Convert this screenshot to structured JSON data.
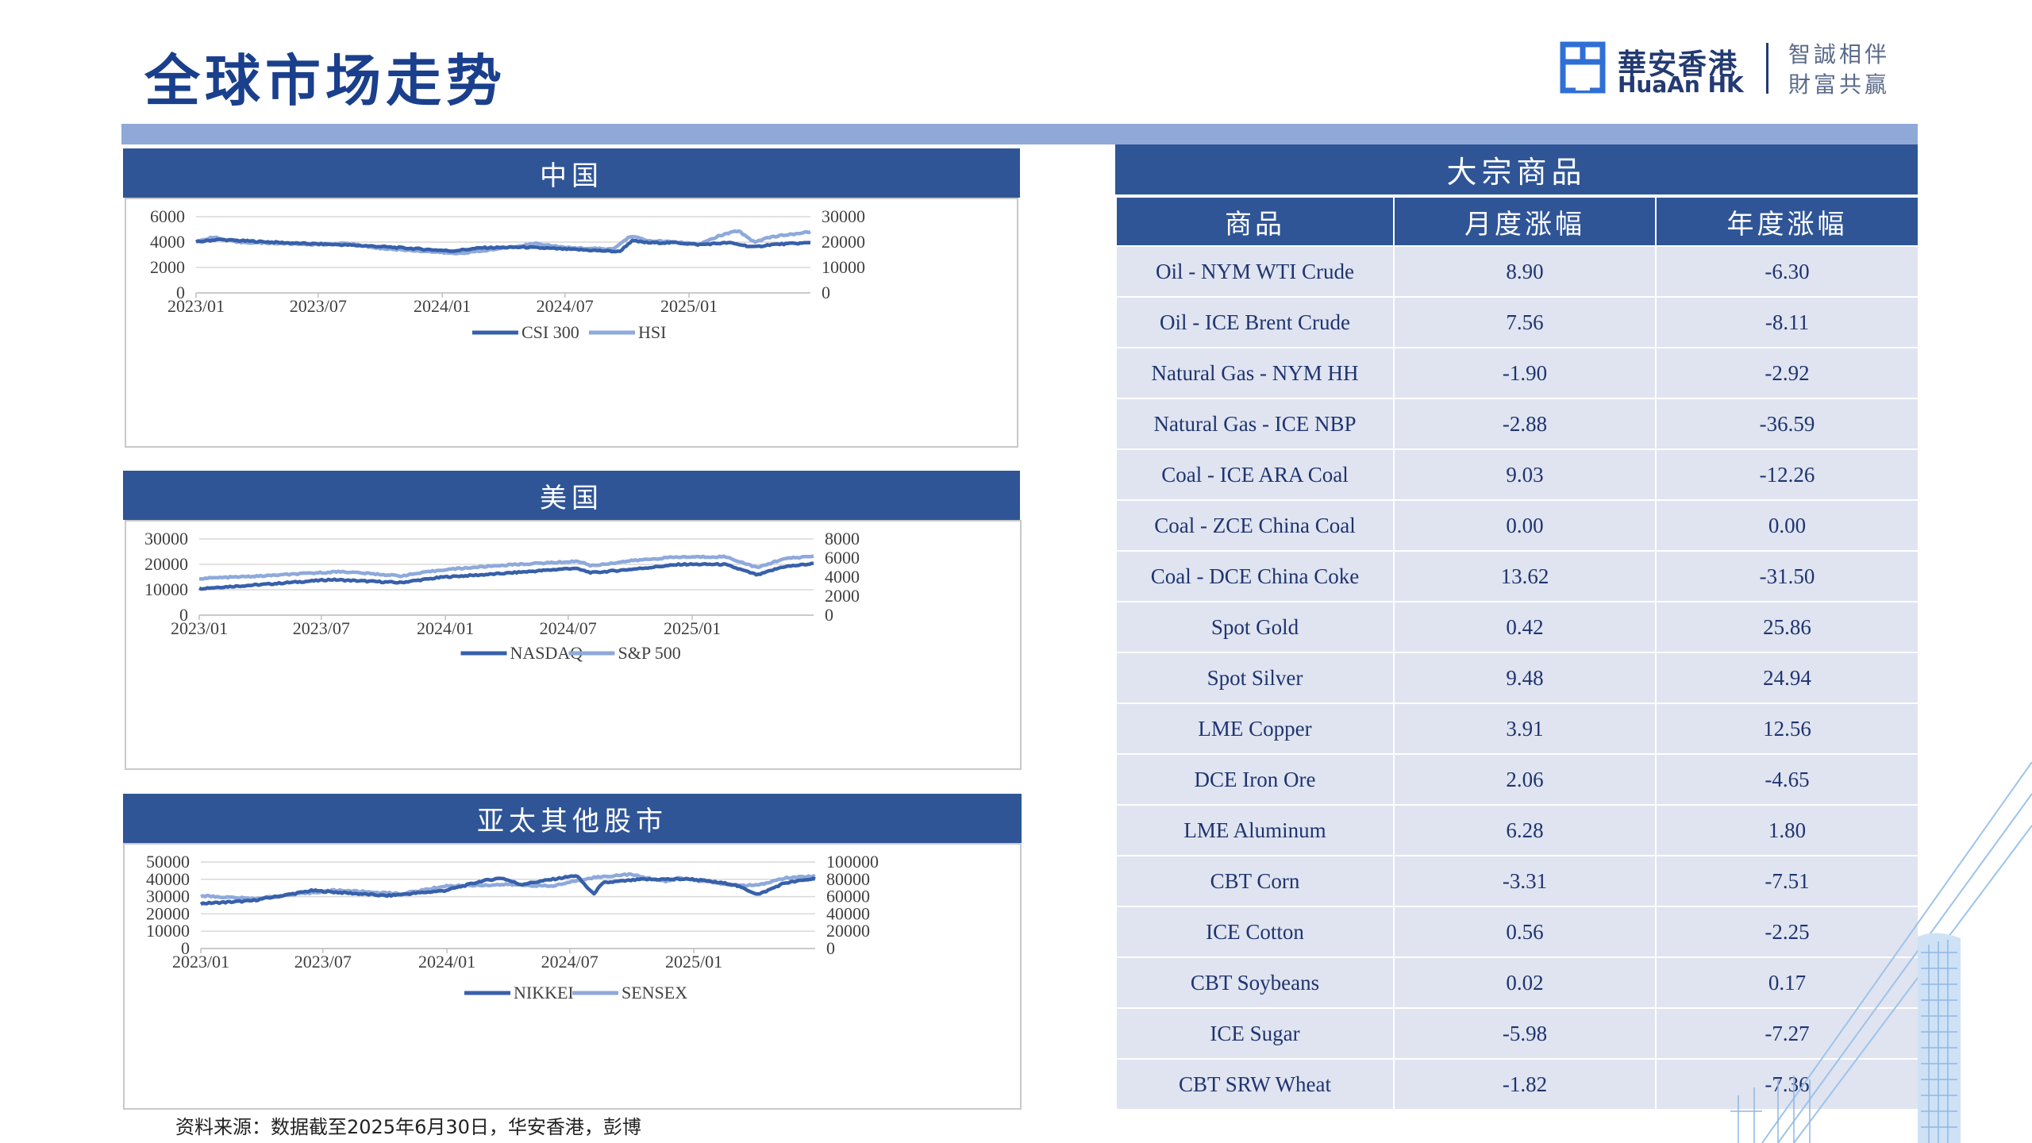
{
  "page": {
    "title": "全球市场走势",
    "source_note": "资料来源：数据截至2025年6月30日，华安香港，彭博"
  },
  "logo": {
    "cn": "華安香港",
    "en": "HuaAn HK",
    "slogan_line1": "智誠相伴",
    "slogan_line2": "財富共贏"
  },
  "colors": {
    "accent": "#2f5597",
    "series_dark": "#3760aa",
    "series_light": "#8ea9db",
    "table_row_bg": "#dfe4f0",
    "top_bar": "#8fa8d8"
  },
  "panels": {
    "china": "中国",
    "us": "美国",
    "asia": "亚太其他股市"
  },
  "chart_data": [
    {
      "id": "china",
      "type": "line",
      "x_ticks": [
        "2023/01",
        "2023/07",
        "2024/01",
        "2024/07",
        "2025/01"
      ],
      "left_axis": {
        "ticks": [
          0,
          2000,
          4000,
          6000
        ],
        "ylim": [
          0,
          6000
        ]
      },
      "right_axis": {
        "ticks": [
          0,
          10000,
          20000,
          30000
        ],
        "ylim": [
          0,
          30000
        ]
      },
      "legend_position": "bottom",
      "x_range": [
        "2023-01-01",
        "2025-06-30"
      ],
      "series": [
        {
          "name": "CSI 300",
          "axis": "left",
          "color": "#3760aa",
          "points": [
            [
              "2023-01-01",
              4000
            ],
            [
              "2023-02-01",
              4200
            ],
            [
              "2023-04-01",
              4050
            ],
            [
              "2023-06-01",
              3900
            ],
            [
              "2023-08-01",
              3800
            ],
            [
              "2023-10-01",
              3650
            ],
            [
              "2023-12-01",
              3450
            ],
            [
              "2024-01-15",
              3300
            ],
            [
              "2024-03-01",
              3550
            ],
            [
              "2024-05-01",
              3600
            ],
            [
              "2024-07-01",
              3450
            ],
            [
              "2024-09-01",
              3300
            ],
            [
              "2024-09-20",
              3250
            ],
            [
              "2024-10-08",
              4100
            ],
            [
              "2024-11-01",
              3950
            ],
            [
              "2024-12-15",
              3950
            ],
            [
              "2025-01-15",
              3800
            ],
            [
              "2025-03-01",
              3950
            ],
            [
              "2025-04-08",
              3600
            ],
            [
              "2025-05-01",
              3800
            ],
            [
              "2025-06-30",
              3950
            ]
          ]
        },
        {
          "name": "HSI",
          "axis": "right",
          "color": "#8ea9db",
          "points": [
            [
              "2023-01-01",
              20000
            ],
            [
              "2023-01-25",
              22000
            ],
            [
              "2023-03-01",
              20000
            ],
            [
              "2023-05-01",
              19500
            ],
            [
              "2023-07-01",
              19000
            ],
            [
              "2023-08-15",
              19500
            ],
            [
              "2023-10-01",
              17500
            ],
            [
              "2023-12-01",
              16500
            ],
            [
              "2024-01-20",
              15500
            ],
            [
              "2024-03-01",
              16500
            ],
            [
              "2024-05-20",
              19500
            ],
            [
              "2024-07-01",
              17800
            ],
            [
              "2024-09-10",
              17200
            ],
            [
              "2024-10-07",
              22500
            ],
            [
              "2024-11-01",
              20500
            ],
            [
              "2024-12-15",
              20000
            ],
            [
              "2025-01-15",
              19000
            ],
            [
              "2025-02-15",
              22500
            ],
            [
              "2025-03-15",
              24500
            ],
            [
              "2025-04-08",
              20000
            ],
            [
              "2025-05-01",
              22000
            ],
            [
              "2025-06-30",
              24000
            ]
          ]
        }
      ]
    },
    {
      "id": "us",
      "type": "line",
      "x_ticks": [
        "2023/01",
        "2023/07",
        "2024/01",
        "2024/07",
        "2025/01"
      ],
      "left_axis": {
        "ticks": [
          0,
          10000,
          20000,
          30000
        ],
        "ylim": [
          0,
          30000
        ]
      },
      "right_axis": {
        "ticks": [
          0,
          2000,
          4000,
          6000,
          8000
        ],
        "ylim": [
          0,
          8000
        ]
      },
      "legend_position": "bottom",
      "x_range": [
        "2023-01-01",
        "2025-06-30"
      ],
      "series": [
        {
          "name": "NASDAQ",
          "axis": "left",
          "color": "#3760aa",
          "points": [
            [
              "2023-01-01",
              10500
            ],
            [
              "2023-04-01",
              12000
            ],
            [
              "2023-07-15",
              14000
            ],
            [
              "2023-10-25",
              12800
            ],
            [
              "2023-12-29",
              15000
            ],
            [
              "2024-03-15",
              16200
            ],
            [
              "2024-07-10",
              18500
            ],
            [
              "2024-08-05",
              16700
            ],
            [
              "2024-10-01",
              18000
            ],
            [
              "2024-12-15",
              20000
            ],
            [
              "2025-02-18",
              20000
            ],
            [
              "2025-04-08",
              15800
            ],
            [
              "2025-05-15",
              19000
            ],
            [
              "2025-06-30",
              20300
            ]
          ]
        },
        {
          "name": "S&P 500",
          "axis": "right",
          "color": "#8ea9db",
          "points": [
            [
              "2023-01-01",
              3850
            ],
            [
              "2023-04-01",
              4100
            ],
            [
              "2023-07-31",
              4580
            ],
            [
              "2023-10-27",
              4120
            ],
            [
              "2023-12-29",
              4770
            ],
            [
              "2024-03-28",
              5250
            ],
            [
              "2024-07-16",
              5660
            ],
            [
              "2024-08-05",
              5190
            ],
            [
              "2024-10-01",
              5700
            ],
            [
              "2024-12-06",
              6090
            ],
            [
              "2025-02-19",
              6140
            ],
            [
              "2025-04-08",
              4980
            ],
            [
              "2025-05-15",
              5900
            ],
            [
              "2025-06-30",
              6200
            ]
          ]
        }
      ]
    },
    {
      "id": "asia",
      "type": "line",
      "x_ticks": [
        "2023/01",
        "2023/07",
        "2024/01",
        "2024/07",
        "2025/01"
      ],
      "left_axis": {
        "ticks": [
          0,
          10000,
          20000,
          30000,
          40000,
          50000
        ],
        "ylim": [
          0,
          50000
        ]
      },
      "right_axis": {
        "ticks": [
          0,
          20000,
          40000,
          60000,
          80000,
          100000
        ],
        "ylim": [
          0,
          100000
        ]
      },
      "legend_position": "bottom",
      "x_range": [
        "2023-01-01",
        "2025-06-30"
      ],
      "series": [
        {
          "name": "NIKKEI",
          "axis": "left",
          "color": "#3760aa",
          "points": [
            [
              "2023-01-01",
              26000
            ],
            [
              "2023-03-15",
              27500
            ],
            [
              "2023-06-15",
              33500
            ],
            [
              "2023-10-04",
              30500
            ],
            [
              "2023-12-29",
              33500
            ],
            [
              "2024-02-22",
              39000
            ],
            [
              "2024-03-22",
              40800
            ],
            [
              "2024-04-19",
              37000
            ],
            [
              "2024-07-11",
              42200
            ],
            [
              "2024-08-05",
              31500
            ],
            [
              "2024-08-20",
              38000
            ],
            [
              "2024-10-15",
              39900
            ],
            [
              "2024-12-27",
              40200
            ],
            [
              "2025-03-01",
              37000
            ],
            [
              "2025-04-07",
              31200
            ],
            [
              "2025-05-15",
              37800
            ],
            [
              "2025-06-30",
              40500
            ]
          ]
        },
        {
          "name": "SENSEX",
          "axis": "right",
          "color": "#8ea9db",
          "points": [
            [
              "2023-01-01",
              61000
            ],
            [
              "2023-03-20",
              57500
            ],
            [
              "2023-07-20",
              67500
            ],
            [
              "2023-10-26",
              63200
            ],
            [
              "2023-12-29",
              72200
            ],
            [
              "2024-04-01",
              74000
            ],
            [
              "2024-06-04",
              72000
            ],
            [
              "2024-07-31",
              81700
            ],
            [
              "2024-09-27",
              85800
            ],
            [
              "2024-11-21",
              77200
            ],
            [
              "2024-12-10",
              81500
            ],
            [
              "2025-03-04",
              73000
            ],
            [
              "2025-04-07",
              73100
            ],
            [
              "2025-05-15",
              81300
            ],
            [
              "2025-06-30",
              83600
            ]
          ]
        }
      ]
    }
  ],
  "commodities": {
    "title": "大宗商品",
    "headers": [
      "商品",
      "月度涨幅",
      "年度涨幅"
    ],
    "rows": [
      [
        "Oil - NYM WTI Crude",
        "8.90",
        "-6.30"
      ],
      [
        "Oil - ICE Brent Crude",
        "7.56",
        "-8.11"
      ],
      [
        "Natural Gas - NYM HH",
        "-1.90",
        "-2.92"
      ],
      [
        "Natural Gas - ICE NBP",
        "-2.88",
        "-36.59"
      ],
      [
        "Coal - ICE ARA Coal",
        "9.03",
        "-12.26"
      ],
      [
        "Coal - ZCE China Coal",
        "0.00",
        "0.00"
      ],
      [
        "Coal - DCE China Coke",
        "13.62",
        "-31.50"
      ],
      [
        "Spot Gold",
        "0.42",
        "25.86"
      ],
      [
        "Spot Silver",
        "9.48",
        "24.94"
      ],
      [
        "LME Copper",
        "3.91",
        "12.56"
      ],
      [
        "DCE Iron Ore",
        "2.06",
        "-4.65"
      ],
      [
        "LME Aluminum",
        "6.28",
        "1.80"
      ],
      [
        "CBT Corn",
        "-3.31",
        "-7.51"
      ],
      [
        "ICE Cotton",
        "0.56",
        "-2.25"
      ],
      [
        "CBT Soybeans",
        "0.02",
        "0.17"
      ],
      [
        "ICE Sugar",
        "-5.98",
        "-7.27"
      ],
      [
        "CBT SRW Wheat",
        "-1.82",
        "-7.36"
      ]
    ]
  }
}
